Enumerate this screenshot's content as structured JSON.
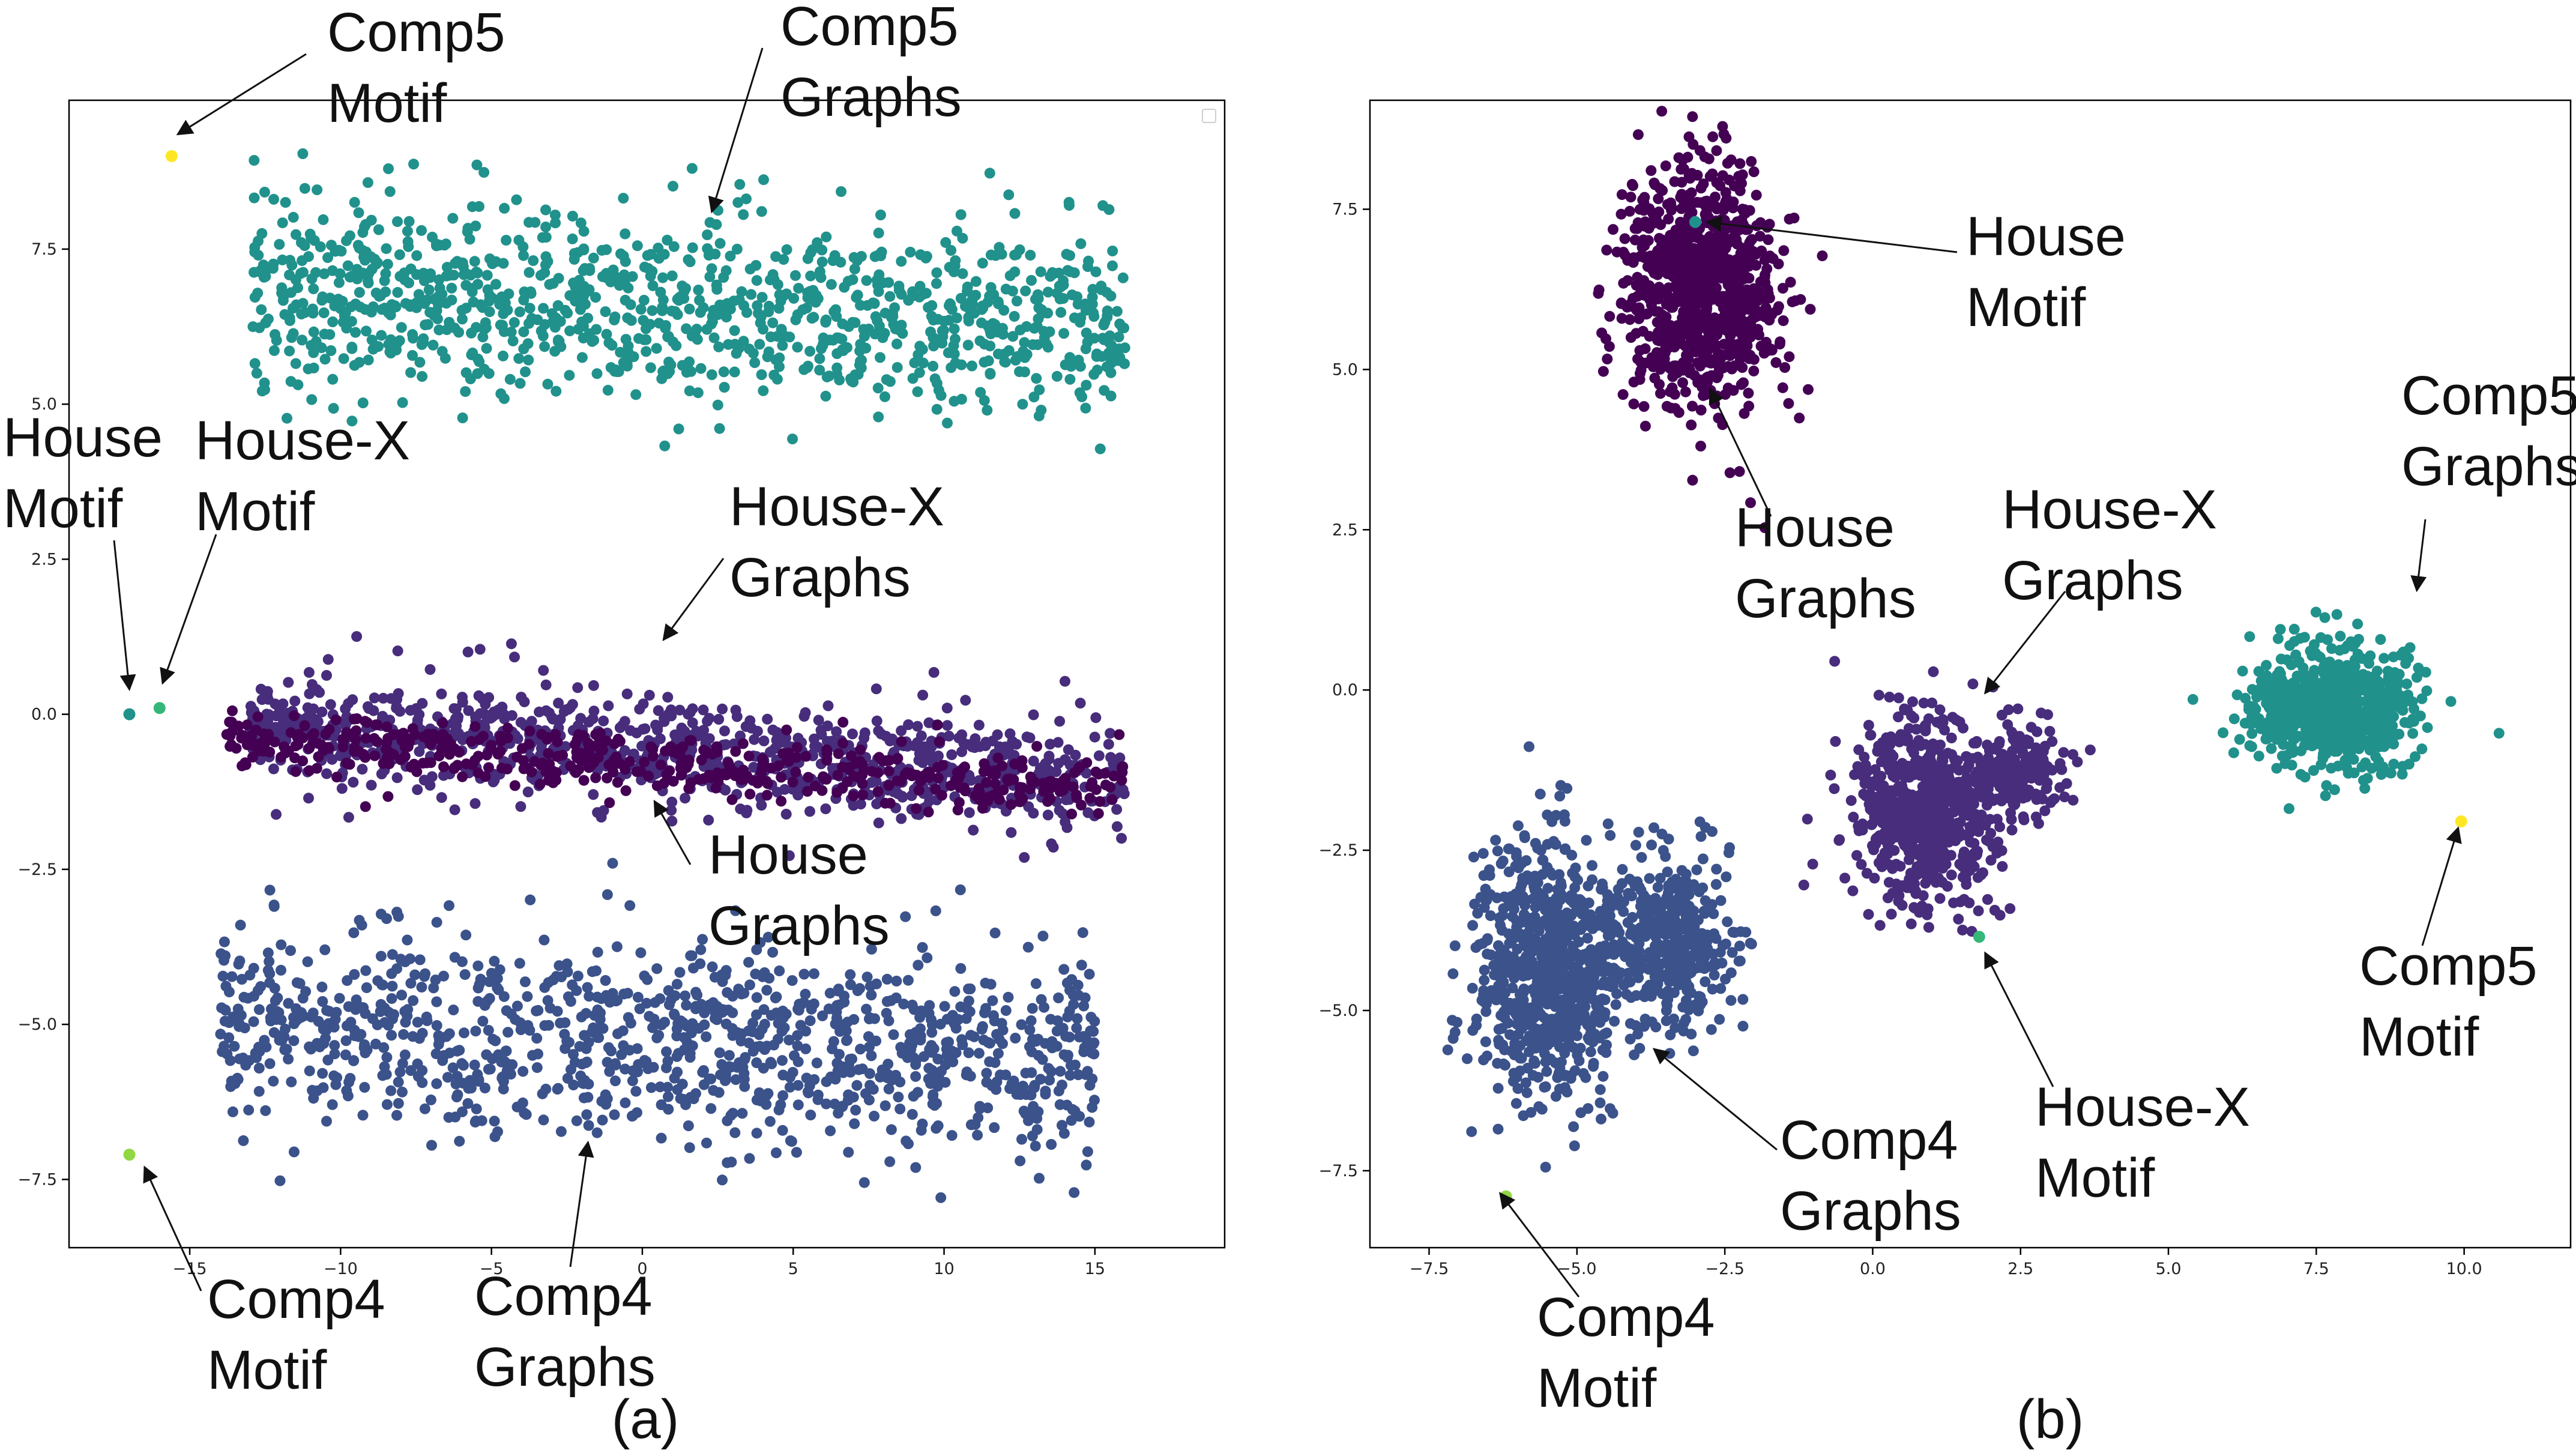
{
  "figure_labels": [
    "(a)",
    "(b)"
  ],
  "colors": {
    "house_graphs": "#440154",
    "housex_graphs": "#472d7b",
    "comp4_graphs": "#3b528b",
    "comp5_graphs": "#21918c",
    "house_motif": "#21918c",
    "housex_motif": "#35b779",
    "comp4_motif": "#90d743",
    "comp5_motif": "#fde725"
  },
  "chart_data": [
    {
      "id": "a",
      "type": "scatter",
      "title": "",
      "xlabel": "",
      "ylabel": "",
      "xlim": [
        -19,
        19.3
      ],
      "ylim": [
        -8.6,
        9.9
      ],
      "xticks": [
        -15,
        -10,
        -5,
        0,
        5,
        10,
        15
      ],
      "xtick_labels": [
        "−15",
        "−10",
        "−5",
        "0",
        "5",
        "10",
        "15"
      ],
      "yticks": [
        -7.5,
        -5.0,
        -2.5,
        0.0,
        2.5,
        5.0,
        7.5
      ],
      "ytick_labels": [
        "−7.5",
        "−5.0",
        "−2.5",
        "0.0",
        "2.5",
        "5.0",
        "7.5"
      ],
      "legend": "top-right (empty)",
      "clusters": [
        {
          "name": "Comp5 Graphs",
          "color": "#21918c",
          "x_range": [
            -13,
            16
          ],
          "y_center": 6.6,
          "y_spread": 0.75,
          "slope": -0.02,
          "n": 1100
        },
        {
          "name": "House-X Graphs",
          "color": "#472d7b",
          "x_range": [
            -13,
            16
          ],
          "y_center": -0.55,
          "y_spread": 0.45,
          "slope": -0.03,
          "n": 900
        },
        {
          "name": "House Graphs",
          "color": "#440154",
          "x_range": [
            -14,
            16
          ],
          "y_center": -0.75,
          "y_spread": 0.25,
          "slope": -0.03,
          "n": 500
        },
        {
          "name": "Comp4 Graphs",
          "color": "#3b528b",
          "x_range": [
            -14,
            15
          ],
          "y_center": -5.3,
          "y_spread": 0.8,
          "slope": -0.02,
          "n": 1100
        }
      ],
      "motifs": [
        {
          "name": "Comp5 Motif",
          "color": "#fde725",
          "x": -15.6,
          "y": 9.0
        },
        {
          "name": "House Motif",
          "color": "#21918c",
          "x": -17.0,
          "y": 0.0
        },
        {
          "name": "House-X Motif",
          "color": "#35b779",
          "x": -16.0,
          "y": 0.1
        },
        {
          "name": "Comp4 Motif",
          "color": "#90d743",
          "x": -17.0,
          "y": -7.1
        }
      ],
      "annotations": [
        {
          "lines": [
            "Comp5",
            "Motif"
          ],
          "target": [
            -15.4,
            9.35
          ]
        },
        {
          "lines": [
            "Comp5",
            "Graphs"
          ],
          "target": [
            2.3,
            8.1
          ]
        },
        {
          "lines": [
            "House",
            "Motif"
          ],
          "target": [
            -17.0,
            0.4
          ]
        },
        {
          "lines": [
            "House-X",
            "Motif"
          ],
          "target": [
            -15.9,
            0.5
          ]
        },
        {
          "lines": [
            "House-X",
            "Graphs"
          ],
          "target": [
            0.7,
            1.2
          ]
        },
        {
          "lines": [
            "House",
            "Graphs"
          ],
          "target": [
            0.4,
            -1.4
          ]
        },
        {
          "lines": [
            "Comp4",
            "Motif"
          ],
          "target": [
            -16.5,
            -7.3
          ]
        },
        {
          "lines": [
            "Comp4",
            "Graphs"
          ],
          "target": [
            -1.8,
            -6.9
          ]
        }
      ]
    },
    {
      "id": "b",
      "type": "scatter",
      "title": "",
      "xlabel": "",
      "ylabel": "",
      "xlim": [
        -8.5,
        11.8
      ],
      "ylim": [
        -8.7,
        9.2
      ],
      "xticks": [
        -7.5,
        -5.0,
        -2.5,
        0.0,
        2.5,
        5.0,
        7.5,
        10.0
      ],
      "xtick_labels": [
        "−7.5",
        "−5.0",
        "−2.5",
        "0.0",
        "2.5",
        "5.0",
        "7.5",
        "10.0"
      ],
      "yticks": [
        -7.5,
        -5.0,
        -2.5,
        0.0,
        2.5,
        5.0,
        7.5
      ],
      "ytick_labels": [
        "−7.5",
        "−5.0",
        "−2.5",
        "0.0",
        "2.5",
        "5.0",
        "7.5"
      ],
      "clusters": [
        {
          "name": "House Graphs",
          "color": "#440154",
          "center": [
            -2.9,
            6.3
          ],
          "spread": [
            0.65,
            0.9
          ],
          "n": 900
        },
        {
          "name": "House-X Graphs",
          "color": "#472d7b",
          "center": [
            0.9,
            -1.9
          ],
          "spread": [
            0.65,
            0.75
          ],
          "n": 650
        },
        {
          "name": "House-X Graphs (lobe)",
          "color": "#472d7b",
          "center": [
            2.6,
            -1.3
          ],
          "spread": [
            0.4,
            0.35
          ],
          "n": 150
        },
        {
          "name": "Comp5 Graphs",
          "color": "#21918c",
          "center": [
            7.8,
            -0.3
          ],
          "spread": [
            0.7,
            0.45
          ],
          "n": 800
        },
        {
          "name": "Comp4 Graphs",
          "color": "#3b528b",
          "center": [
            -5.5,
            -4.4
          ],
          "spread": [
            0.65,
            0.95
          ],
          "n": 800
        },
        {
          "name": "Comp4 Graphs (lobe)",
          "color": "#3b528b",
          "center": [
            -3.4,
            -3.9
          ],
          "spread": [
            0.55,
            0.7
          ],
          "n": 350
        }
      ],
      "motifs": [
        {
          "name": "House Motif",
          "color": "#21918c",
          "x": -3.0,
          "y": 7.3
        },
        {
          "name": "House-X Motif",
          "color": "#35b779",
          "x": 1.8,
          "y": -3.85
        },
        {
          "name": "Comp5 Motif",
          "color": "#fde725",
          "x": 9.95,
          "y": -2.05
        },
        {
          "name": "Comp4 Motif",
          "color": "#90d743",
          "x": -6.2,
          "y": -7.9
        }
      ],
      "annotations": [
        {
          "lines": [
            "House",
            "Motif"
          ],
          "target": [
            -2.8,
            7.3
          ]
        },
        {
          "lines": [
            "House",
            "Graphs"
          ],
          "target": [
            -2.75,
            4.7
          ]
        },
        {
          "lines": [
            "House-X",
            "Graphs"
          ],
          "target": [
            1.9,
            -0.05
          ]
        },
        {
          "lines": [
            "Comp5",
            "Graphs"
          ],
          "target": [
            9.2,
            1.55
          ]
        },
        {
          "lines": [
            "Comp5",
            "Motif"
          ],
          "target": [
            9.9,
            -2.15
          ]
        },
        {
          "lines": [
            "House-X",
            "Motif"
          ],
          "target": [
            1.9,
            -4.1
          ]
        },
        {
          "lines": [
            "Comp4",
            "Graphs"
          ],
          "target": [
            -3.7,
            -5.6
          ]
        },
        {
          "lines": [
            "Comp4",
            "Motif"
          ],
          "target": [
            -6.3,
            -7.85
          ]
        }
      ]
    }
  ]
}
